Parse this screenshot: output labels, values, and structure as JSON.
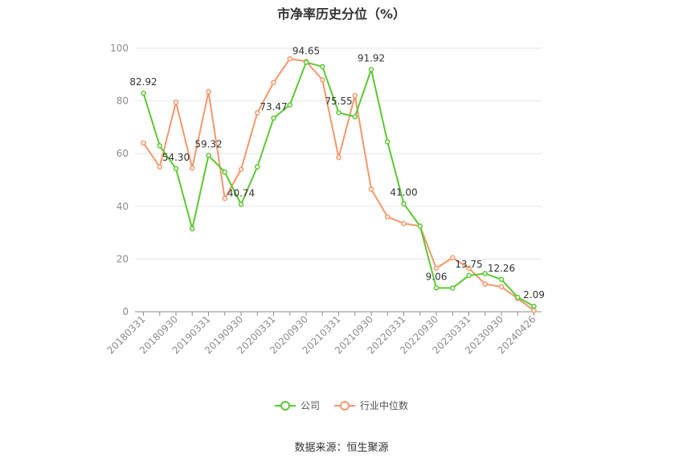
{
  "chart_data": {
    "type": "line",
    "title": "市净率历史分位（%）",
    "source": "数据来源：恒生聚源",
    "ylim": [
      0,
      100
    ],
    "yticks": [
      0,
      20,
      40,
      60,
      80,
      100
    ],
    "grid": true,
    "legend_position": "bottom",
    "x_labels": [
      "20180331",
      "20180930",
      "20190331",
      "20190930",
      "20200331",
      "20200930",
      "20210331",
      "20210930",
      "20220331",
      "20220930",
      "20230331",
      "20230930",
      "20240426"
    ],
    "x": [
      "20180331",
      "20180630",
      "20180930",
      "20181231",
      "20190331",
      "20190630",
      "20190930",
      "20191231",
      "20200331",
      "20200630",
      "20200930",
      "20201231",
      "20210331",
      "20210630",
      "20210930",
      "20211231",
      "20220331",
      "20220630",
      "20220930",
      "20221231",
      "20230331",
      "20230630",
      "20230930",
      "20231231",
      "20240426"
    ],
    "series": [
      {
        "name": "公司",
        "color": "#5ac831",
        "values": [
          82.92,
          63.0,
          54.3,
          31.5,
          59.32,
          53.0,
          40.74,
          55.0,
          73.47,
          78.5,
          94.65,
          93.0,
          75.55,
          74.0,
          91.92,
          64.5,
          41.0,
          32.5,
          9.06,
          9.0,
          13.75,
          14.5,
          12.26,
          5.5,
          2.09
        ],
        "labeled_indices": [
          0,
          2,
          4,
          6,
          8,
          10,
          12,
          14,
          16,
          18,
          20,
          22,
          24
        ]
      },
      {
        "name": "行业中位数",
        "color": "#f6976a",
        "values": [
          64.0,
          55.0,
          79.5,
          54.5,
          83.5,
          43.0,
          54.0,
          75.5,
          87.0,
          96.0,
          95.0,
          88.0,
          58.5,
          82.0,
          46.5,
          36.0,
          33.5,
          32.5,
          16.5,
          20.5,
          16.5,
          10.5,
          9.5,
          5.0,
          0.5
        ]
      }
    ]
  },
  "legend": {
    "company": "公司",
    "industry": "行业中位数"
  }
}
